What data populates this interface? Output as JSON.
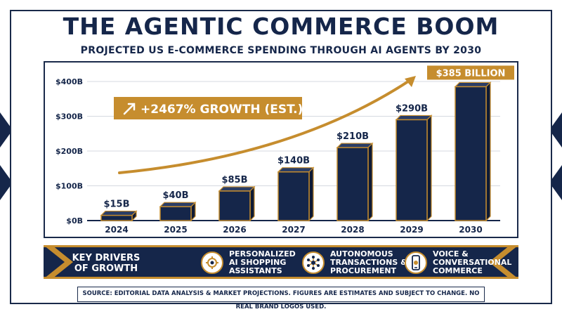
{
  "title": "THE AGENTIC COMMERCE BOOM",
  "subtitle": "PROJECTED US E-COMMERCE SPENDING THROUGH AI AGENTS BY 2030",
  "chart_data": {
    "type": "bar",
    "categories": [
      "2024",
      "2025",
      "2026",
      "2027",
      "2028",
      "2029",
      "2030"
    ],
    "values": [
      15,
      40,
      85,
      140,
      210,
      290,
      385
    ],
    "data_labels": [
      "$15B",
      "$40B",
      "$85B",
      "$140B",
      "$210B",
      "$290B",
      "$385 BILLION"
    ],
    "y_ticks": [
      0,
      100,
      200,
      300,
      400
    ],
    "y_tick_labels": [
      "$0B",
      "$100B",
      "$200B",
      "$300B",
      "$400B"
    ],
    "ylim": [
      0,
      400
    ],
    "grid": true,
    "annotation": "+2467% GROWTH (EST.)",
    "colors": {
      "bar": "#15264a",
      "accent": "#c68d2e",
      "grid": "#d5d9e0"
    }
  },
  "drivers": {
    "title_line1": "KEY DRIVERS",
    "title_line2": "OF GROWTH",
    "items": [
      {
        "icon": "gear-cart-icon",
        "line1": "PERSONALIZED",
        "line2": "AI SHOPPING",
        "line3": "ASSISTANTS"
      },
      {
        "icon": "network-icon",
        "line1": "AUTONOMOUS",
        "line2": "TRANSACTIONS &",
        "line3": "PROCUREMENT"
      },
      {
        "icon": "phone-voice-icon",
        "line1": "VOICE &",
        "line2": "CONVERSATIONAL",
        "line3": "COMMERCE"
      }
    ]
  },
  "source": "SOURCE: EDITORIAL DATA ANALYSIS & MARKET PROJECTIONS. FIGURES ARE ESTIMATES AND SUBJECT TO CHANGE. NO REAL BRAND LOGOS USED."
}
